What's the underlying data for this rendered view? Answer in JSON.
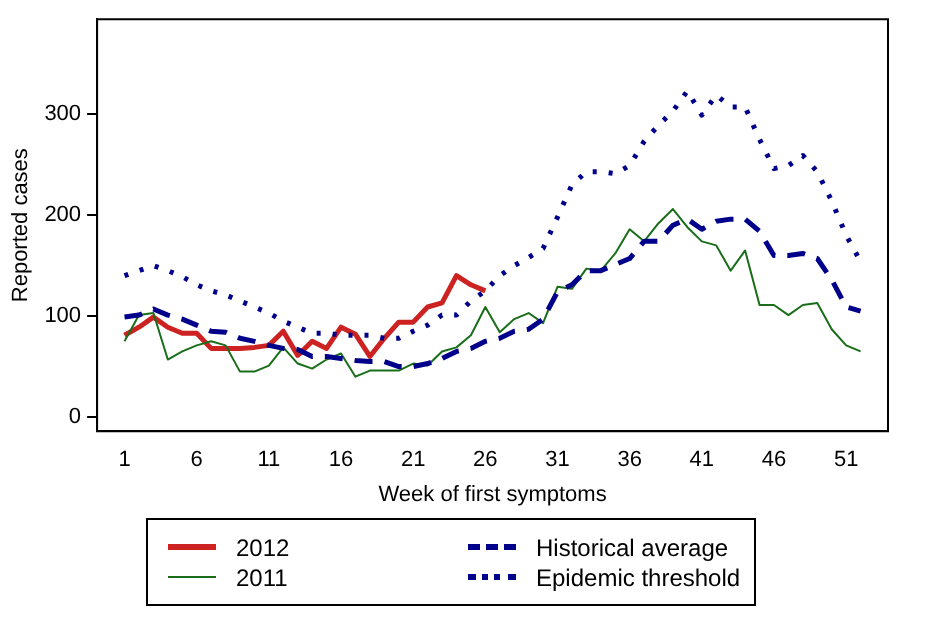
{
  "chart_data": {
    "type": "line",
    "xlabel": "Week of first symptoms",
    "ylabel": "Reported cases",
    "x": [
      1,
      2,
      3,
      4,
      5,
      6,
      7,
      8,
      9,
      10,
      11,
      12,
      13,
      14,
      15,
      16,
      17,
      18,
      19,
      20,
      21,
      22,
      23,
      24,
      25,
      26,
      27,
      28,
      29,
      30,
      31,
      32,
      33,
      34,
      35,
      36,
      37,
      38,
      39,
      40,
      41,
      42,
      43,
      44,
      45,
      46,
      47,
      48,
      49,
      50,
      51,
      52
    ],
    "xlim": [
      -0.9,
      53.9
    ],
    "xticks": [
      1,
      6,
      11,
      16,
      21,
      26,
      31,
      36,
      41,
      46,
      51
    ],
    "ylim": [
      -14,
      394
    ],
    "yticks": [
      0,
      100,
      200,
      300
    ],
    "grid": false,
    "legend": "bottom",
    "marker": "none",
    "series": [
      {
        "name": "2012",
        "color": "#cc2222",
        "line_style": "solid",
        "x": [
          1,
          2,
          3,
          4,
          5,
          6,
          7,
          8,
          9,
          10,
          11,
          12,
          13,
          14,
          15,
          16,
          17,
          18,
          19,
          20,
          21,
          22,
          23,
          24,
          25,
          26
        ],
        "values": [
          81,
          89,
          99,
          89,
          83,
          83,
          68,
          68,
          68,
          69,
          71,
          85,
          61,
          75,
          68,
          89,
          82,
          60,
          78,
          94,
          94,
          109,
          113,
          140,
          131,
          125
        ]
      },
      {
        "name": "2011",
        "color": "#1a6e1a",
        "line_style": "solid",
        "values": [
          75,
          101,
          103,
          57,
          65,
          71,
          75,
          71,
          45,
          45,
          51,
          69,
          53,
          48,
          57,
          63,
          40,
          46,
          46,
          46,
          53,
          51,
          65,
          69,
          81,
          109,
          84,
          97,
          103,
          93,
          129,
          127,
          147,
          145,
          162,
          186,
          174,
          192,
          206,
          188,
          174,
          170,
          145,
          165,
          111,
          111,
          101,
          111,
          113,
          87,
          71,
          65
        ]
      },
      {
        "name": "Historical average",
        "color": "#00008b",
        "line_style": "dashed",
        "values": [
          99,
          101,
          107,
          101,
          97,
          91,
          85,
          84,
          78,
          75,
          71,
          68,
          67,
          60,
          60,
          58,
          56,
          55,
          55,
          50,
          50,
          53,
          58,
          65,
          68,
          75,
          78,
          85,
          87,
          97,
          124,
          131,
          145,
          145,
          151,
          157,
          174,
          174,
          190,
          196,
          186,
          194,
          196,
          196,
          184,
          160,
          160,
          162,
          157,
          136,
          109,
          105
        ]
      },
      {
        "name": "Epidemic threshold",
        "color": "#00008b",
        "line_style": "dotted",
        "values": [
          140,
          145,
          150,
          145,
          139,
          131,
          125,
          121,
          115,
          109,
          103,
          95,
          89,
          83,
          83,
          81,
          81,
          81,
          78,
          78,
          85,
          91,
          101,
          101,
          115,
          125,
          140,
          150,
          158,
          167,
          198,
          230,
          243,
          243,
          241,
          249,
          273,
          289,
          303,
          323,
          299,
          319,
          307,
          307,
          275,
          246,
          249,
          259,
          243,
          214,
          180,
          154
        ]
      }
    ]
  }
}
